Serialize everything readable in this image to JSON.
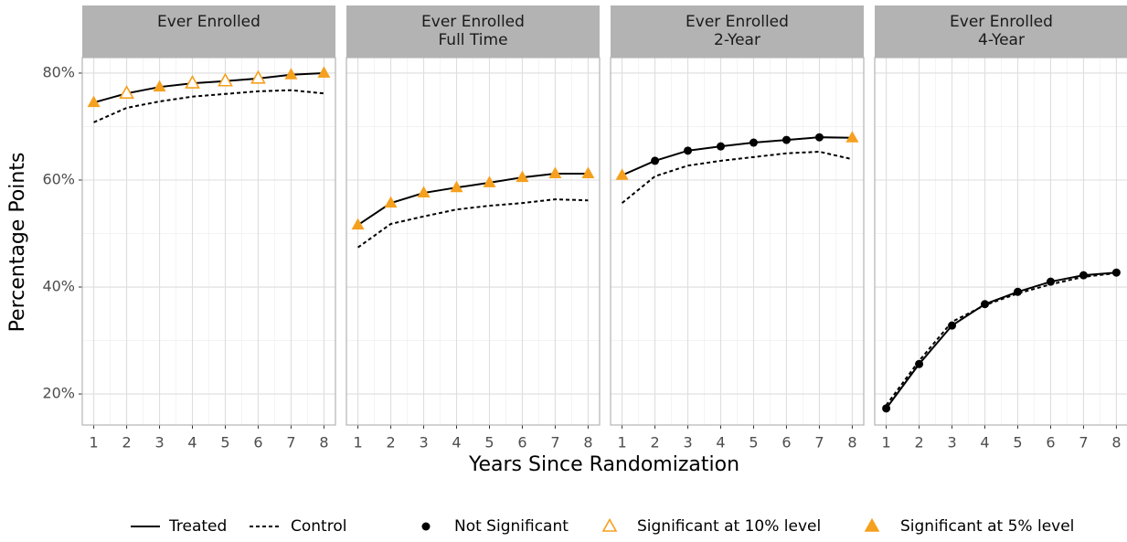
{
  "y_label": "Percentage Points",
  "x_label": "Years Since Randomization",
  "marker_legend": [
    {
      "label": "Not Significant",
      "marker": "dot",
      "color": "#000000"
    },
    {
      "label": "Significant at 10% level",
      "marker": "open-triangle",
      "color": "#f5a01e"
    },
    {
      "label": "Significant at 5% level",
      "marker": "filled-triangle",
      "color": "#f5a01e"
    }
  ],
  "chart_data": [
    {
      "type": "line",
      "title": "Ever Enrolled",
      "x": [
        1,
        2,
        3,
        4,
        5,
        6,
        7,
        8
      ],
      "series": [
        {
          "name": "Treated",
          "color": "#000000",
          "dash": "solid",
          "values": [
            74.5,
            76.2,
            77.4,
            78.1,
            78.5,
            79.0,
            79.7,
            80.0
          ],
          "markers": [
            "filled-triangle",
            "open-triangle",
            "filled-triangle",
            "open-triangle",
            "open-triangle",
            "open-triangle",
            "filled-triangle",
            "filled-triangle"
          ]
        },
        {
          "name": "Control",
          "color": "#000000",
          "dash": "dashed",
          "values": [
            70.8,
            73.5,
            74.7,
            75.6,
            76.1,
            76.6,
            76.8,
            76.2
          ]
        }
      ],
      "xlim": [
        0.65,
        8.35
      ],
      "xticks": [
        1,
        2,
        3,
        4,
        5,
        6,
        7,
        8
      ],
      "ylim": [
        14.2,
        82.9
      ],
      "yticks": [
        {
          "value": 20,
          "label": "20%"
        },
        {
          "value": 40,
          "label": "40%"
        },
        {
          "value": 60,
          "label": "60%"
        },
        {
          "value": 80,
          "label": "80%"
        }
      ],
      "grid": true
    },
    {
      "type": "line",
      "title": "Ever Enrolled\nFull Time",
      "x": [
        1,
        2,
        3,
        4,
        5,
        6,
        7,
        8
      ],
      "series": [
        {
          "name": "Treated",
          "color": "#000000",
          "dash": "solid",
          "values": [
            51.6,
            55.7,
            57.6,
            58.6,
            59.5,
            60.5,
            61.2,
            61.2
          ],
          "markers": [
            "filled-triangle",
            "filled-triangle",
            "filled-triangle",
            "filled-triangle",
            "filled-triangle",
            "filled-triangle",
            "filled-triangle",
            "filled-triangle"
          ]
        },
        {
          "name": "Control",
          "color": "#000000",
          "dash": "dashed",
          "values": [
            47.4,
            51.8,
            53.2,
            54.5,
            55.2,
            55.7,
            56.4,
            56.2
          ]
        }
      ],
      "xlim": [
        0.65,
        8.35
      ],
      "xticks": [
        1,
        2,
        3,
        4,
        5,
        6,
        7,
        8
      ],
      "ylim": [
        14.2,
        82.9
      ],
      "yticks": [
        20,
        40,
        60,
        80
      ],
      "grid": true
    },
    {
      "type": "line",
      "title": "Ever Enrolled\n2-Year",
      "x": [
        1,
        2,
        3,
        4,
        5,
        6,
        7,
        8
      ],
      "series": [
        {
          "name": "Treated",
          "color": "#000000",
          "dash": "solid",
          "values": [
            60.9,
            63.6,
            65.5,
            66.3,
            67.0,
            67.5,
            68.0,
            67.9
          ],
          "markers": [
            "filled-triangle",
            "dot",
            "dot",
            "dot",
            "dot",
            "dot",
            "dot",
            "filled-triangle"
          ]
        },
        {
          "name": "Control",
          "color": "#000000",
          "dash": "dashed",
          "values": [
            55.7,
            60.7,
            62.7,
            63.6,
            64.3,
            65.0,
            65.3,
            63.9
          ]
        }
      ],
      "xlim": [
        0.65,
        8.35
      ],
      "xticks": [
        1,
        2,
        3,
        4,
        5,
        6,
        7,
        8
      ],
      "ylim": [
        14.2,
        82.9
      ],
      "yticks": [
        20,
        40,
        60,
        80
      ],
      "grid": true
    },
    {
      "type": "line",
      "title": "Ever Enrolled\n4-Year",
      "x": [
        1,
        2,
        3,
        4,
        5,
        6,
        7,
        8
      ],
      "series": [
        {
          "name": "Treated",
          "color": "#000000",
          "dash": "solid",
          "values": [
            17.3,
            25.6,
            32.8,
            36.8,
            39.1,
            41.0,
            42.2,
            42.7
          ],
          "markers": [
            "dot",
            "dot",
            "dot",
            "dot",
            "dot",
            "dot",
            "dot",
            "dot"
          ]
        },
        {
          "name": "Control",
          "color": "#000000",
          "dash": "dashed",
          "values": [
            17.9,
            26.2,
            33.5,
            36.6,
            38.8,
            40.5,
            41.9,
            42.6
          ]
        }
      ],
      "xlim": [
        0.65,
        8.35
      ],
      "xticks": [
        1,
        2,
        3,
        4,
        5,
        6,
        7,
        8
      ],
      "ylim": [
        14.2,
        82.9
      ],
      "yticks": [
        20,
        40,
        60,
        80
      ],
      "grid": true
    }
  ]
}
